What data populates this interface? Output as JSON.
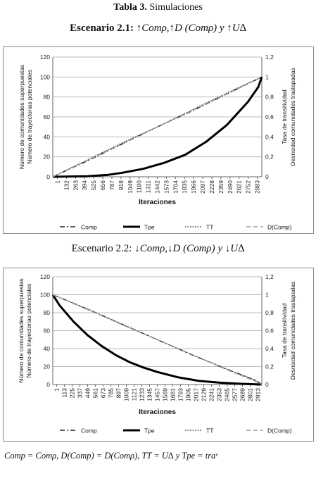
{
  "header": {
    "table_bold": "Tabla 3.",
    "table_rest": " Simulaciones"
  },
  "scenario1": {
    "prefix": "Escenario 2.1: ",
    "formula": "↑Comρ,↑D (Comρ) y ↑U∆"
  },
  "scenario2": {
    "prefix": "Escenario 2.2: ",
    "formula": "↓Comρ,↓D (Comρ) y ↓U∆"
  },
  "footnote": "Comp = Comρ, D(Comp) = D(Comρ), TT = U∆ y Tpe = traᵉ",
  "chart_data": [
    {
      "type": "line",
      "xlabel": "Iteraciones",
      "ylabel_left": [
        "Número de comunidades superpuestas",
        "Número de trayectorias potenciales"
      ],
      "ylabel_right": [
        "Tasa de transitividad",
        "Desnsidad comunidades traslapadas"
      ],
      "ylim": [
        0,
        120
      ],
      "y_ticks": [
        0,
        20,
        40,
        60,
        80,
        100,
        120
      ],
      "y2lim": [
        0,
        1.2
      ],
      "y2_ticks": [
        "0",
        "0,2",
        "0,4",
        "0,6",
        "0,8",
        "1",
        "1,2"
      ],
      "x_ticks": [
        "1",
        "132",
        "263",
        "394",
        "525",
        "656",
        "787",
        "918",
        "1049",
        "1180",
        "1311",
        "1442",
        "1573",
        "1704",
        "1835",
        "1966",
        "2097",
        "2228",
        "2359",
        "2490",
        "2621",
        "2752",
        "2883"
      ],
      "x_range": [
        1,
        3000
      ],
      "grid": true,
      "legend": "bottom",
      "series": [
        {
          "name": "Comp",
          "style": "dashdot",
          "axis": "left",
          "x": [
            1,
            500,
            1000,
            1500,
            2000,
            2500,
            3000
          ],
          "values": [
            0,
            16,
            33,
            50,
            66,
            83,
            100
          ]
        },
        {
          "name": "Tpe",
          "style": "solid-thick",
          "axis": "left",
          "x": [
            1,
            500,
            800,
            1000,
            1300,
            1600,
            1900,
            2200,
            2500,
            2800,
            2950,
            3000
          ],
          "values": [
            0,
            0.6,
            2,
            4,
            8,
            14,
            22,
            35,
            52,
            75,
            90,
            100
          ]
        },
        {
          "name": "TT",
          "style": "dotted",
          "axis": "right",
          "x": [
            1,
            500,
            1000,
            1500,
            2000,
            2500,
            3000
          ],
          "values": [
            0,
            0.17,
            0.34,
            0.5,
            0.67,
            0.84,
            1.0
          ]
        },
        {
          "name": "D(Comp)",
          "style": "dashed",
          "axis": "right",
          "x": [
            1,
            500,
            1000,
            1500,
            2000,
            2500,
            3000
          ],
          "values": [
            0,
            0.165,
            0.33,
            0.5,
            0.665,
            0.83,
            1.0
          ]
        }
      ]
    },
    {
      "type": "line",
      "xlabel": "Iteraciones",
      "ylabel_left": [
        "Número de comunidades superpuestas",
        "Número de trayectorias potenciales"
      ],
      "ylabel_right": [
        "Tasa de transitividad",
        "Desnsidad comunidades traslapadas"
      ],
      "ylim": [
        0,
        120
      ],
      "y_ticks": [
        0,
        20,
        40,
        60,
        80,
        100,
        120
      ],
      "y2lim": [
        0,
        1.2
      ],
      "y2_ticks": [
        "0",
        "0,2",
        "0,4",
        "0,6",
        "0,8",
        "1",
        "1,2"
      ],
      "x_ticks": [
        "1",
        "113",
        "225",
        "337",
        "449",
        "561",
        "673",
        "785",
        "897",
        "1009",
        "1121",
        "1233",
        "1345",
        "1457",
        "1569",
        "1681",
        "1793",
        "1905",
        "2017",
        "2129",
        "2241",
        "2353",
        "2465",
        "2577",
        "2689",
        "2801",
        "2913"
      ],
      "x_range": [
        1,
        3000
      ],
      "grid": true,
      "legend": "bottom",
      "series": [
        {
          "name": "Comp",
          "style": "dashdot",
          "axis": "left",
          "x": [
            1,
            500,
            1000,
            1500,
            2000,
            2500,
            2900,
            3000
          ],
          "values": [
            100,
            84,
            67,
            50,
            33,
            17,
            5,
            0
          ]
        },
        {
          "name": "Tpe",
          "style": "solid-thick",
          "axis": "left",
          "x": [
            1,
            100,
            300,
            500,
            700,
            900,
            1100,
            1300,
            1500,
            1800,
            2100,
            2400,
            2700,
            3000
          ],
          "values": [
            100,
            88,
            70,
            55,
            43,
            33,
            25,
            19,
            14,
            8,
            4,
            2,
            0.8,
            0
          ]
        },
        {
          "name": "TT",
          "style": "dotted",
          "axis": "right",
          "x": [
            1,
            500,
            1000,
            1500,
            2000,
            2500,
            2900,
            3000
          ],
          "values": [
            1.0,
            0.84,
            0.67,
            0.5,
            0.33,
            0.17,
            0.05,
            0
          ]
        },
        {
          "name": "D(Comp)",
          "style": "dashed",
          "axis": "right",
          "x": [
            1,
            500,
            1000,
            1500,
            2000,
            2500,
            2900,
            3000
          ],
          "values": [
            1.0,
            0.835,
            0.665,
            0.5,
            0.335,
            0.165,
            0.04,
            0
          ]
        }
      ]
    }
  ]
}
